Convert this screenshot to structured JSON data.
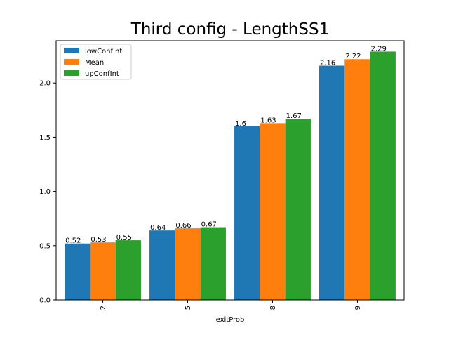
{
  "chart_data": {
    "type": "bar",
    "title": "Third config - LengthSS1",
    "xlabel": "exitProb",
    "ylabel": "",
    "categories": [
      "2",
      "5",
      "8",
      "9"
    ],
    "series": [
      {
        "name": "lowConfInt",
        "color": "#1f77b4",
        "values": [
          0.52,
          0.64,
          1.6,
          2.16
        ]
      },
      {
        "name": "Mean",
        "color": "#ff7f0e",
        "values": [
          0.53,
          0.66,
          1.63,
          2.22
        ]
      },
      {
        "name": "upConfInt",
        "color": "#2ca02c",
        "values": [
          0.55,
          0.67,
          1.67,
          2.29
        ]
      }
    ],
    "ylim": [
      0,
      2.39
    ],
    "yticks": [
      0.0,
      0.5,
      1.0,
      1.5,
      2.0
    ],
    "ytick_labels": [
      "0.0",
      "0.5",
      "1.0",
      "1.5",
      "2.0"
    ],
    "xtick_rotation": "vertical",
    "grid": false,
    "legend_placement": "top-left"
  }
}
